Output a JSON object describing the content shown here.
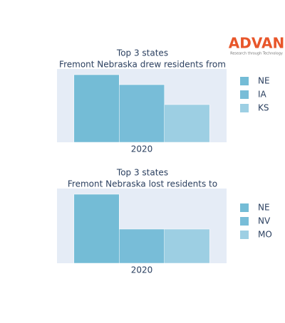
{
  "logo": {
    "name": "ADVAN",
    "tagline": "Research through Technology"
  },
  "chart_data": [
    {
      "type": "bar",
      "title": "Top 3 states",
      "subtitle": "Fremont Nebraska drew residents from",
      "categories": [
        "2020"
      ],
      "ylim": [
        0,
        103
      ],
      "series": [
        {
          "name": "NE",
          "color": "#74bcd6",
          "values": [
            95
          ]
        },
        {
          "name": "IA",
          "color": "#78bdd8",
          "values": [
            81
          ]
        },
        {
          "name": "KS",
          "color": "#9dcfe3",
          "values": [
            53
          ]
        }
      ]
    },
    {
      "type": "bar",
      "title": "Top 3 states",
      "subtitle": "Fremont Nebraska lost residents to",
      "categories": [
        "2020"
      ],
      "ylim": [
        0,
        105
      ],
      "series": [
        {
          "name": "NE",
          "color": "#74bcd6",
          "values": [
            97
          ]
        },
        {
          "name": "NV",
          "color": "#78bdd8",
          "values": [
            48
          ]
        },
        {
          "name": "MO",
          "color": "#9dcfe3",
          "values": [
            48
          ]
        }
      ]
    }
  ]
}
